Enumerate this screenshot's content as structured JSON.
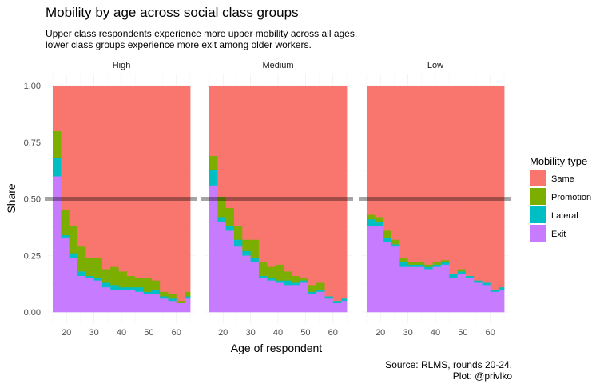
{
  "chart_data": {
    "type": "bar",
    "subtype": "stacked-step-area-faceted",
    "title": "Mobility by age across social class groups",
    "subtitle_lines": [
      "Upper class respondents experience more upper mobility across all ages,",
      "lower class groups experience more exit among older workers."
    ],
    "caption_lines": [
      "Source: RLMS, rounds 20-24.",
      "Plot: @privlko"
    ],
    "xlabel": "Age of respondent",
    "ylabel": "Share",
    "xlim": [
      15,
      65
    ],
    "ylim": [
      0,
      1
    ],
    "x_ticks": [
      20,
      30,
      40,
      50,
      60
    ],
    "y_ticks": [
      0,
      0.25,
      0.5,
      0.75,
      1
    ],
    "y_tick_labels": [
      "0.00",
      "0.25",
      "0.50",
      "0.75",
      "1.00"
    ],
    "reference_line_y": 0.5,
    "grid": true,
    "legend": {
      "title": "Mobility type",
      "position": "right",
      "entries": [
        {
          "name": "Same",
          "color": "#F8766D"
        },
        {
          "name": "Promotion",
          "color": "#7CAE00"
        },
        {
          "name": "Lateral",
          "color": "#00BFC4"
        },
        {
          "name": "Exit",
          "color": "#C77CFF"
        }
      ]
    },
    "stack_order": [
      "Exit",
      "Lateral",
      "Promotion",
      "Same"
    ],
    "facets": [
      {
        "name": "High",
        "bins": [
          {
            "x0": 15,
            "x1": 18,
            "exit": 0.6,
            "lateral": 0.08,
            "promotion": 0.12
          },
          {
            "x0": 18,
            "x1": 21,
            "exit": 0.33,
            "lateral": 0.01,
            "promotion": 0.11
          },
          {
            "x0": 21,
            "x1": 24,
            "exit": 0.24,
            "lateral": 0.02,
            "promotion": 0.12
          },
          {
            "x0": 24,
            "x1": 27,
            "exit": 0.16,
            "lateral": 0.02,
            "promotion": 0.11
          },
          {
            "x0": 27,
            "x1": 30,
            "exit": 0.15,
            "lateral": 0.01,
            "promotion": 0.08
          },
          {
            "x0": 30,
            "x1": 33,
            "exit": 0.14,
            "lateral": 0.01,
            "promotion": 0.09
          },
          {
            "x0": 33,
            "x1": 36,
            "exit": 0.11,
            "lateral": 0.02,
            "promotion": 0.06
          },
          {
            "x0": 36,
            "x1": 39,
            "exit": 0.1,
            "lateral": 0.02,
            "promotion": 0.08
          },
          {
            "x0": 39,
            "x1": 42,
            "exit": 0.1,
            "lateral": 0.01,
            "promotion": 0.07
          },
          {
            "x0": 42,
            "x1": 45,
            "exit": 0.1,
            "lateral": 0.01,
            "promotion": 0.05
          },
          {
            "x0": 45,
            "x1": 48,
            "exit": 0.09,
            "lateral": 0.02,
            "promotion": 0.04
          },
          {
            "x0": 48,
            "x1": 51,
            "exit": 0.08,
            "lateral": 0.01,
            "promotion": 0.06
          },
          {
            "x0": 51,
            "x1": 54,
            "exit": 0.08,
            "lateral": 0.02,
            "promotion": 0.04
          },
          {
            "x0": 54,
            "x1": 57,
            "exit": 0.06,
            "lateral": 0.01,
            "promotion": 0.02
          },
          {
            "x0": 57,
            "x1": 60,
            "exit": 0.05,
            "lateral": 0.01,
            "promotion": 0.02
          },
          {
            "x0": 60,
            "x1": 63,
            "exit": 0.04,
            "lateral": 0.0,
            "promotion": 0.01
          },
          {
            "x0": 63,
            "x1": 65,
            "exit": 0.06,
            "lateral": 0.01,
            "promotion": 0.02
          }
        ]
      },
      {
        "name": "Medium",
        "bins": [
          {
            "x0": 15,
            "x1": 18,
            "exit": 0.56,
            "lateral": 0.07,
            "promotion": 0.06
          },
          {
            "x0": 18,
            "x1": 21,
            "exit": 0.4,
            "lateral": 0.02,
            "promotion": 0.09
          },
          {
            "x0": 21,
            "x1": 24,
            "exit": 0.36,
            "lateral": 0.02,
            "promotion": 0.08
          },
          {
            "x0": 24,
            "x1": 27,
            "exit": 0.29,
            "lateral": 0.03,
            "promotion": 0.06
          },
          {
            "x0": 27,
            "x1": 30,
            "exit": 0.25,
            "lateral": 0.02,
            "promotion": 0.05
          },
          {
            "x0": 30,
            "x1": 33,
            "exit": 0.22,
            "lateral": 0.02,
            "promotion": 0.08
          },
          {
            "x0": 33,
            "x1": 36,
            "exit": 0.15,
            "lateral": 0.01,
            "promotion": 0.06
          },
          {
            "x0": 36,
            "x1": 39,
            "exit": 0.14,
            "lateral": 0.01,
            "promotion": 0.05
          },
          {
            "x0": 39,
            "x1": 42,
            "exit": 0.13,
            "lateral": 0.01,
            "promotion": 0.07
          },
          {
            "x0": 42,
            "x1": 45,
            "exit": 0.12,
            "lateral": 0.02,
            "promotion": 0.04
          },
          {
            "x0": 45,
            "x1": 48,
            "exit": 0.12,
            "lateral": 0.01,
            "promotion": 0.03
          },
          {
            "x0": 48,
            "x1": 51,
            "exit": 0.13,
            "lateral": 0.01,
            "promotion": 0.01
          },
          {
            "x0": 51,
            "x1": 54,
            "exit": 0.08,
            "lateral": 0.01,
            "promotion": 0.03
          },
          {
            "x0": 54,
            "x1": 57,
            "exit": 0.09,
            "lateral": 0.01,
            "promotion": 0.03
          },
          {
            "x0": 57,
            "x1": 60,
            "exit": 0.06,
            "lateral": 0.01,
            "promotion": 0.0
          },
          {
            "x0": 60,
            "x1": 63,
            "exit": 0.04,
            "lateral": 0.01,
            "promotion": 0.0
          },
          {
            "x0": 63,
            "x1": 65,
            "exit": 0.05,
            "lateral": 0.01,
            "promotion": 0.0
          }
        ]
      },
      {
        "name": "Low",
        "bins": [
          {
            "x0": 15,
            "x1": 18,
            "exit": 0.38,
            "lateral": 0.03,
            "promotion": 0.02
          },
          {
            "x0": 18,
            "x1": 21,
            "exit": 0.38,
            "lateral": 0.02,
            "promotion": 0.02
          },
          {
            "x0": 21,
            "x1": 24,
            "exit": 0.31,
            "lateral": 0.02,
            "promotion": 0.03
          },
          {
            "x0": 24,
            "x1": 27,
            "exit": 0.29,
            "lateral": 0.01,
            "promotion": 0.02
          },
          {
            "x0": 27,
            "x1": 30,
            "exit": 0.2,
            "lateral": 0.02,
            "promotion": 0.02
          },
          {
            "x0": 30,
            "x1": 33,
            "exit": 0.2,
            "lateral": 0.01,
            "promotion": 0.01
          },
          {
            "x0": 33,
            "x1": 36,
            "exit": 0.2,
            "lateral": 0.01,
            "promotion": 0.01
          },
          {
            "x0": 36,
            "x1": 39,
            "exit": 0.19,
            "lateral": 0.01,
            "promotion": 0.01
          },
          {
            "x0": 39,
            "x1": 42,
            "exit": 0.2,
            "lateral": 0.01,
            "promotion": 0.01
          },
          {
            "x0": 42,
            "x1": 45,
            "exit": 0.21,
            "lateral": 0.01,
            "promotion": 0.01
          },
          {
            "x0": 45,
            "x1": 48,
            "exit": 0.15,
            "lateral": 0.02,
            "promotion": 0.0
          },
          {
            "x0": 48,
            "x1": 51,
            "exit": 0.17,
            "lateral": 0.01,
            "promotion": 0.01
          },
          {
            "x0": 51,
            "x1": 54,
            "exit": 0.15,
            "lateral": 0.01,
            "promotion": 0.0
          },
          {
            "x0": 54,
            "x1": 57,
            "exit": 0.13,
            "lateral": 0.01,
            "promotion": 0.0
          },
          {
            "x0": 57,
            "x1": 60,
            "exit": 0.12,
            "lateral": 0.01,
            "promotion": 0.0
          },
          {
            "x0": 60,
            "x1": 63,
            "exit": 0.09,
            "lateral": 0.01,
            "promotion": 0.0
          },
          {
            "x0": 63,
            "x1": 65,
            "exit": 0.1,
            "lateral": 0.01,
            "promotion": 0.0
          }
        ]
      }
    ]
  }
}
